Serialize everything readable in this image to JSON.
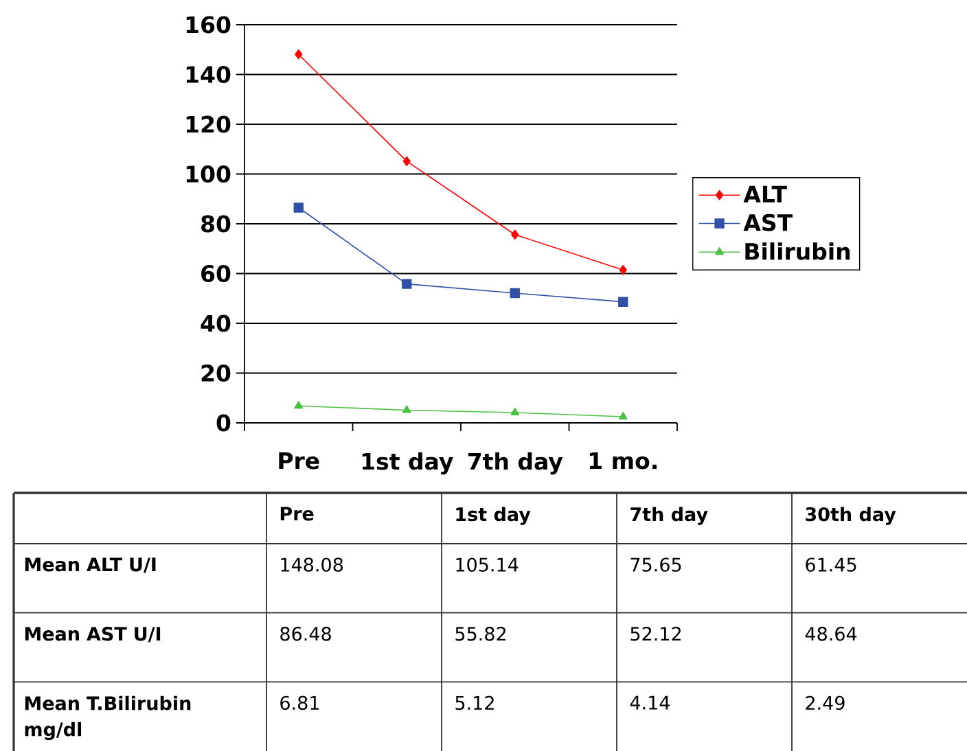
{
  "chart_data": {
    "type": "line",
    "categories": [
      "Pre",
      "1st day",
      "7th day",
      "1 mo."
    ],
    "series": [
      {
        "name": "ALT",
        "color": "#ff0000",
        "marker": "diamond",
        "values": [
          148.08,
          105.14,
          75.65,
          61.45
        ]
      },
      {
        "name": "AST",
        "color": "#3050a8",
        "marker": "square",
        "values": [
          86.48,
          55.82,
          52.12,
          48.64
        ]
      },
      {
        "name": "Bilirubin",
        "color": "#4cc043",
        "marker": "triangle",
        "values": [
          6.81,
          5.12,
          4.14,
          2.49
        ]
      }
    ],
    "ylim": [
      0,
      160
    ],
    "yticks": [
      0,
      20,
      40,
      60,
      80,
      100,
      120,
      140,
      160
    ],
    "grid": "y",
    "legend": "right",
    "annotations": [
      "Pre",
      "1st day",
      "7th day",
      "30th day",
      "Mean ALT U/I",
      "148.08",
      "105.14",
      "75.65",
      "61.45",
      "Mean AST U/I",
      "86.48",
      "55.82",
      "52.12",
      "48.64",
      "Mean T.Bilirubin mg/dl",
      "6.81",
      "5.12",
      "4.14",
      "2.49"
    ]
  }
}
